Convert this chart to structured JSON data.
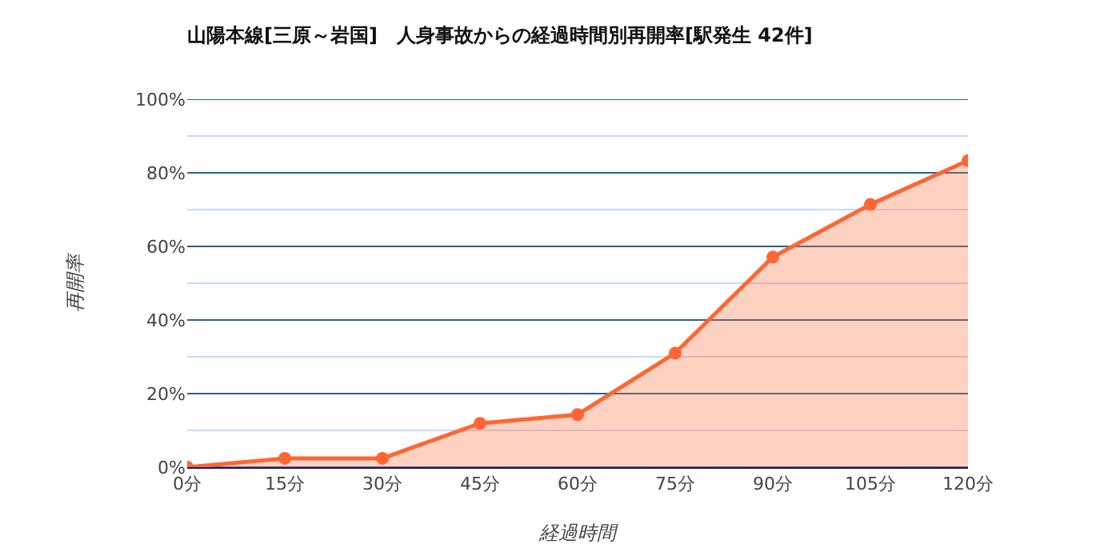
{
  "chart_data": {
    "type": "area",
    "title": "山陽本線[三原～岩国]　人身事故からの経過時間別再開率[駅発生 42件]",
    "xlabel": "経過時間",
    "ylabel": "再開率",
    "categories": [
      "0分",
      "15分",
      "30分",
      "45分",
      "60分",
      "75分",
      "90分",
      "105分",
      "120分"
    ],
    "series": [
      {
        "color": "#ff6633",
        "values": [
          0,
          2.4,
          2.4,
          11.9,
          14.3,
          31.0,
          57.1,
          71.4,
          83.3
        ]
      }
    ],
    "ylim": [
      0,
      100
    ],
    "yticks": [
      {
        "value": 0,
        "label": "0%"
      },
      {
        "value": 10,
        "label": null
      },
      {
        "value": 20,
        "label": "20%"
      },
      {
        "value": 30,
        "label": null
      },
      {
        "value": 40,
        "label": "40%"
      },
      {
        "value": 50,
        "label": null
      },
      {
        "value": 60,
        "label": "60%"
      },
      {
        "value": 70,
        "label": null
      },
      {
        "value": 80,
        "label": "80%"
      },
      {
        "value": 90,
        "label": null
      },
      {
        "value": 100,
        "label": "100%"
      }
    ],
    "grid": "y",
    "marker": "circle",
    "line_style": "solid"
  }
}
